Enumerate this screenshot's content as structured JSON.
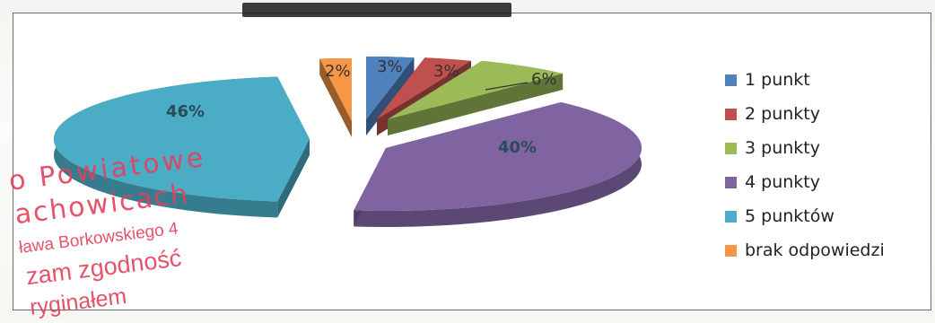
{
  "chart_data": {
    "type": "pie",
    "title": "",
    "legend_position": "right",
    "categories": [
      "1 punkt",
      "2 punkty",
      "3 punkty",
      "4 punkty",
      "5 punktów",
      "brak odpowiedzi"
    ],
    "values": [
      3,
      3,
      6,
      40,
      46,
      2
    ],
    "labels": [
      "3%",
      "3%",
      "6%",
      "40%",
      "46%",
      "2%"
    ],
    "colors": [
      "#4f81bd",
      "#c0504d",
      "#9bbb59",
      "#8064a2",
      "#4bacc6",
      "#f79646"
    ]
  },
  "stamp": {
    "line1": "o  Powiatowe",
    "line2": "achowicach",
    "line3": "ława Borkowskiego 4",
    "line4": "zam zgodność",
    "line5": "ryginałem"
  }
}
